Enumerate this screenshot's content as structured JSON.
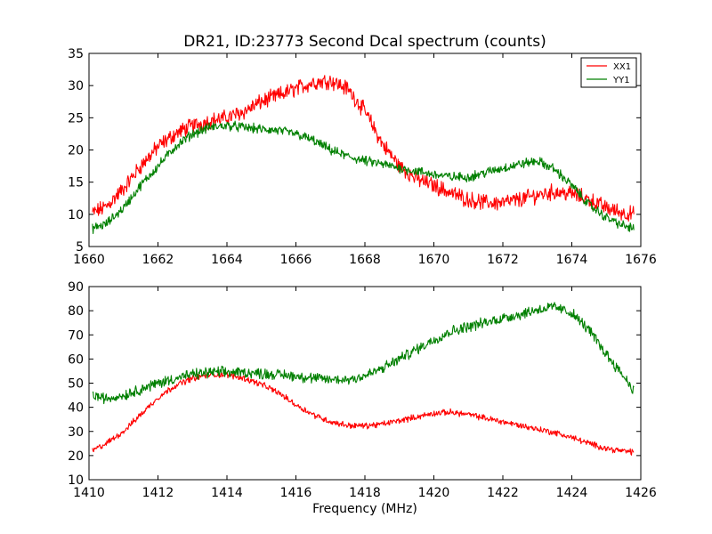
{
  "chart_data": [
    {
      "type": "line",
      "title": "DR21, ID:23773 Second Dcal spectrum (counts)",
      "xlabel": "",
      "ylabel": "",
      "xlim": [
        1660,
        1676
      ],
      "ylim": [
        5,
        35
      ],
      "xticks": [
        1660,
        1662,
        1664,
        1666,
        1668,
        1670,
        1672,
        1674,
        1676
      ],
      "yticks": [
        5,
        10,
        15,
        20,
        25,
        30,
        35
      ],
      "legend_position": "top-right",
      "grid": false,
      "series": [
        {
          "name": "XX1",
          "color": "#ff0000",
          "noise": 1.0,
          "x": [
            1660.1,
            1660.5,
            1661.0,
            1661.5,
            1662.0,
            1662.5,
            1663.0,
            1663.5,
            1664.0,
            1664.5,
            1665.0,
            1665.5,
            1666.0,
            1666.5,
            1667.0,
            1667.5,
            1668.0,
            1668.5,
            1669.0,
            1669.5,
            1670.0,
            1670.5,
            1671.0,
            1671.5,
            1672.0,
            1672.5,
            1673.0,
            1673.5,
            1674.0,
            1674.5,
            1675.0,
            1675.5,
            1675.8
          ],
          "y": [
            10.2,
            11.2,
            14.0,
            17.5,
            20.5,
            22.5,
            23.8,
            24.5,
            25.0,
            26.0,
            27.5,
            28.5,
            29.5,
            30.5,
            30.8,
            29.5,
            26.0,
            21.0,
            17.5,
            15.5,
            14.5,
            13.3,
            12.3,
            11.8,
            11.8,
            12.3,
            13.0,
            13.5,
            13.2,
            12.3,
            11.0,
            10.2,
            10.0
          ]
        },
        {
          "name": "YY1",
          "color": "#008000",
          "noise": 0.6,
          "x": [
            1660.1,
            1660.5,
            1661.0,
            1661.5,
            1662.0,
            1662.5,
            1663.0,
            1663.5,
            1664.0,
            1664.5,
            1665.0,
            1665.5,
            1666.0,
            1666.5,
            1667.0,
            1667.5,
            1668.0,
            1668.5,
            1669.0,
            1669.5,
            1670.0,
            1670.5,
            1671.0,
            1671.5,
            1672.0,
            1672.5,
            1673.0,
            1673.5,
            1674.0,
            1674.5,
            1675.0,
            1675.5,
            1675.8
          ],
          "y": [
            7.8,
            8.5,
            11.0,
            14.5,
            17.5,
            20.5,
            22.5,
            23.5,
            23.8,
            23.5,
            23.2,
            23.0,
            22.5,
            21.5,
            20.0,
            19.0,
            18.3,
            17.8,
            17.2,
            16.7,
            16.2,
            15.8,
            15.8,
            16.5,
            17.2,
            17.8,
            18.3,
            17.0,
            14.5,
            11.5,
            9.5,
            8.2,
            7.8
          ]
        }
      ]
    },
    {
      "type": "line",
      "title": "",
      "xlabel": "Frequency (MHz)",
      "ylabel": "",
      "xlim": [
        1410,
        1426
      ],
      "ylim": [
        10,
        90
      ],
      "xticks": [
        1410,
        1412,
        1414,
        1416,
        1418,
        1420,
        1422,
        1424,
        1426
      ],
      "yticks": [
        10,
        20,
        30,
        40,
        50,
        60,
        70,
        80,
        90
      ],
      "grid": false,
      "series": [
        {
          "name": "XX1",
          "color": "#ff0000",
          "noise": 1.0,
          "x": [
            1410.1,
            1410.5,
            1411.0,
            1411.5,
            1412.0,
            1412.5,
            1413.0,
            1413.5,
            1414.0,
            1414.5,
            1415.0,
            1415.5,
            1416.0,
            1416.5,
            1417.0,
            1417.5,
            1418.0,
            1418.5,
            1419.0,
            1419.5,
            1420.0,
            1420.5,
            1421.0,
            1421.5,
            1422.0,
            1422.5,
            1423.0,
            1423.5,
            1424.0,
            1424.5,
            1425.0,
            1425.5,
            1425.8
          ],
          "y": [
            22.0,
            25.0,
            30.0,
            37.0,
            44.0,
            49.0,
            52.0,
            53.5,
            53.5,
            52.0,
            49.5,
            46.0,
            41.0,
            37.0,
            34.0,
            32.5,
            32.3,
            33.0,
            34.5,
            36.0,
            37.5,
            38.0,
            37.0,
            35.5,
            34.0,
            32.5,
            31.0,
            29.5,
            27.5,
            25.0,
            23.0,
            21.8,
            21.5
          ]
        },
        {
          "name": "YY1",
          "color": "#008000",
          "noise": 1.8,
          "x": [
            1410.1,
            1410.5,
            1411.0,
            1411.5,
            1412.0,
            1412.5,
            1413.0,
            1413.5,
            1414.0,
            1414.5,
            1415.0,
            1415.5,
            1416.0,
            1416.5,
            1417.0,
            1417.5,
            1418.0,
            1418.5,
            1419.0,
            1419.5,
            1420.0,
            1420.5,
            1421.0,
            1421.5,
            1422.0,
            1422.5,
            1423.0,
            1423.5,
            1424.0,
            1424.5,
            1425.0,
            1425.5,
            1425.8
          ],
          "y": [
            45.0,
            43.5,
            45.0,
            47.5,
            50.0,
            52.0,
            53.5,
            54.5,
            54.5,
            54.5,
            54.0,
            53.5,
            53.0,
            52.0,
            51.5,
            51.5,
            53.0,
            56.0,
            60.0,
            64.0,
            68.0,
            71.5,
            73.5,
            75.0,
            77.0,
            78.5,
            80.5,
            81.5,
            79.0,
            72.0,
            62.0,
            53.0,
            47.0
          ]
        }
      ]
    }
  ]
}
